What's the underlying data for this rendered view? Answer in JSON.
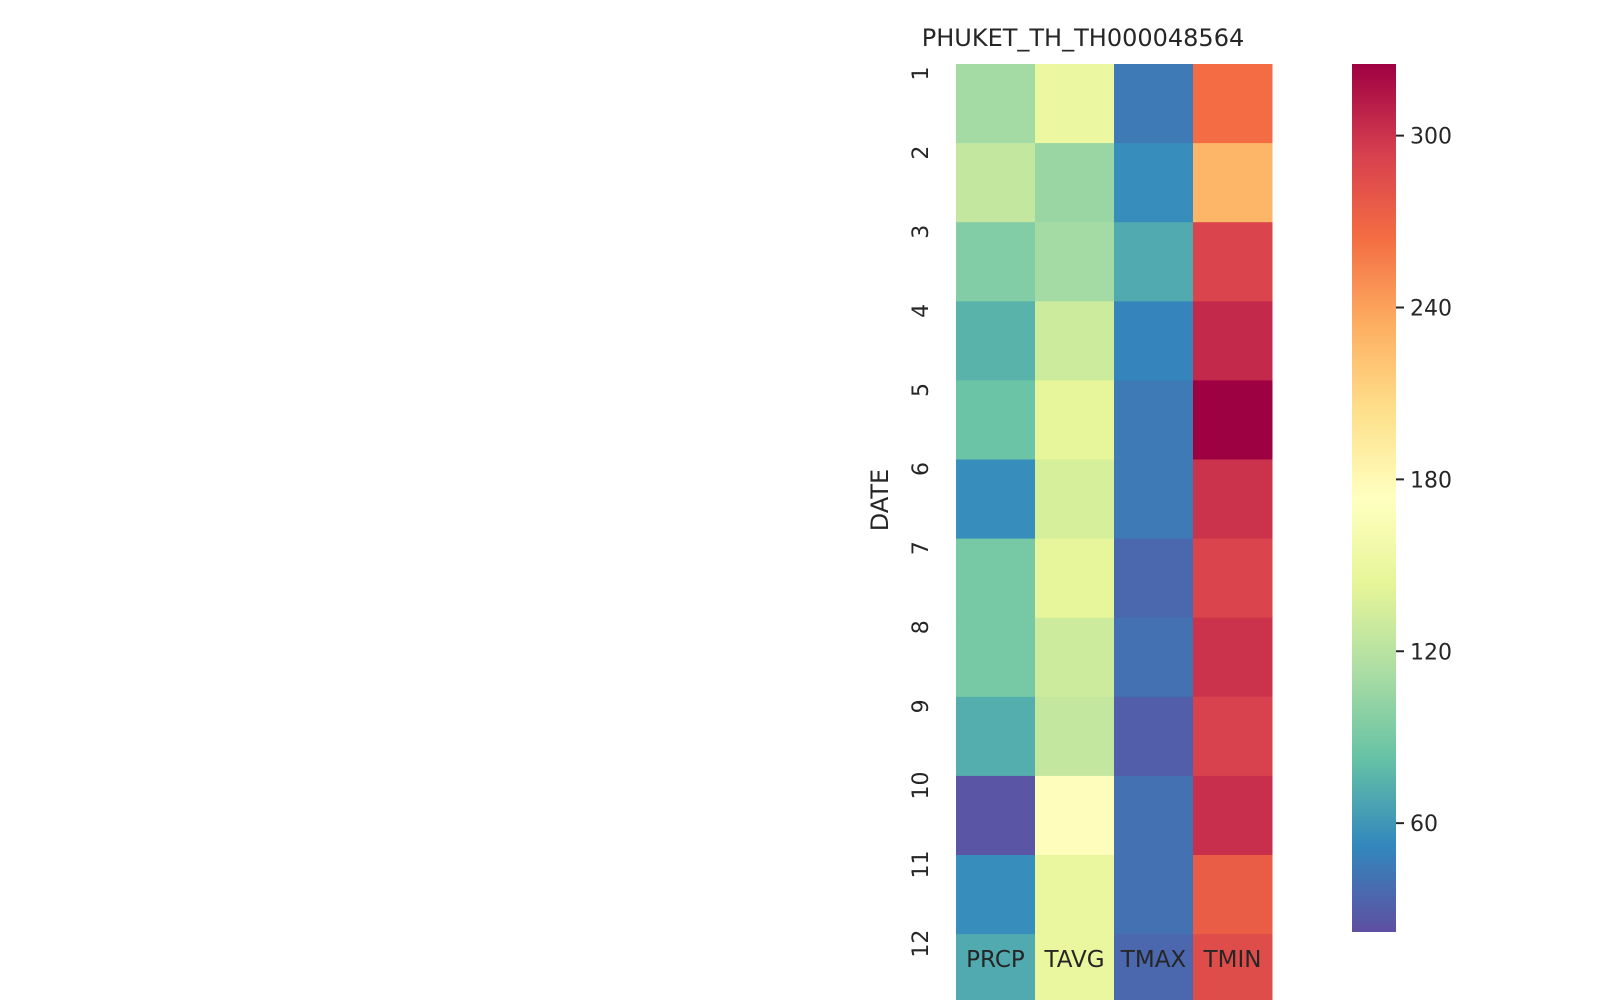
{
  "chart_data": {
    "type": "heatmap",
    "title": "PHUKET_TH_TH000048564",
    "xlabel": "",
    "ylabel": "DATE",
    "x_categories": [
      "PRCP",
      "TAVG",
      "TMAX",
      "TMIN"
    ],
    "y_categories": [
      "1",
      "2",
      "3",
      "4",
      "5",
      "6",
      "7",
      "8",
      "9",
      "10",
      "11",
      "12"
    ],
    "values": [
      [
        110,
        150,
        45,
        265
      ],
      [
        125,
        105,
        55,
        230
      ],
      [
        95,
        110,
        70,
        290
      ],
      [
        75,
        130,
        50,
        305
      ],
      [
        85,
        145,
        45,
        325
      ],
      [
        55,
        135,
        45,
        300
      ],
      [
        90,
        145,
        35,
        290
      ],
      [
        90,
        130,
        40,
        300
      ],
      [
        72,
        125,
        30,
        292
      ],
      [
        25,
        175,
        40,
        302
      ],
      [
        55,
        148,
        40,
        275
      ],
      [
        70,
        148,
        35,
        285
      ]
    ],
    "colorbar": {
      "colormap": "Spectral_r",
      "vmin": 22,
      "vmax": 325,
      "ticks": [
        "60",
        "120",
        "180",
        "240",
        "300"
      ],
      "tick_values": [
        60,
        120,
        180,
        240,
        300
      ]
    },
    "grid": false,
    "legend": "colorbar-right"
  }
}
